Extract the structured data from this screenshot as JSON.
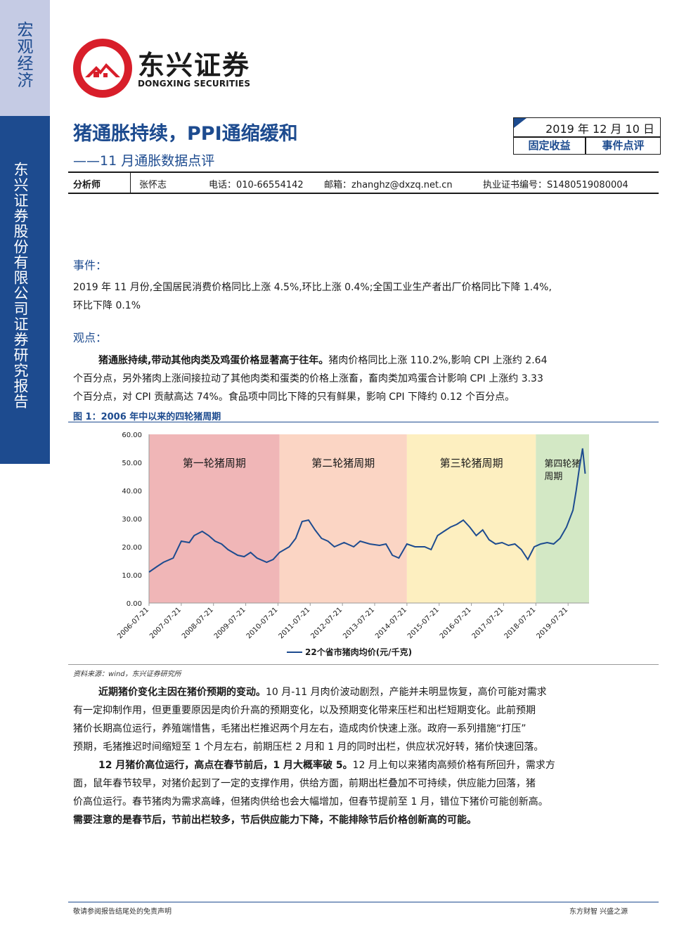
{
  "sidebar": {
    "category": "宏观经济",
    "company": "东兴证券股份有限公司证券研究报告"
  },
  "brand": {
    "name_cn": "东兴证券",
    "name_en": "DONGXING SECURITIES",
    "logo_color": "#d81e2a"
  },
  "report": {
    "title": "猪通胀持续，PPI通缩缓和",
    "subtitle": "——11 月通胀数据点评",
    "date": "2019 年 12 月 10 日",
    "tags": [
      "固定收益",
      "事件点评"
    ]
  },
  "analyst": {
    "label": "分析师",
    "name": "张怀志",
    "phone": "电话：010-66554142",
    "email": "邮箱：zhanghz@dxzq.net.cn",
    "cert": "执业证书编号：S1480519080004"
  },
  "event": {
    "heading": "事件：",
    "lines": [
      "2019 年 11 月份,全国居民消费价格同比上涨 4.5%,环比上涨 0.4%;全国工业生产者出厂价格同比下降 1.4%,",
      "环比下降 0.1%"
    ]
  },
  "view": {
    "heading": "观点：",
    "p1_bold": "猪通胀持续,带动其他肉类及鸡蛋价格显著高于往年。",
    "p1_line1_rest": "猪肉价格同比上涨 110.2%,影响 CPI 上涨约 2.64",
    "p1_line2": "个百分点，另外猪肉上涨间接拉动了其他肉类和蛋类的价格上涨畜，畜肉类加鸡蛋合计影响 CPI 上涨约 3.33",
    "p1_line3": "个百分点，对 CPI 贡献高达 74%。食品项中同比下降的只有鲜果，影响 CPI 下降约 0.12 个百分点。"
  },
  "figure": {
    "title": "图 1：2006 年中以来的四轮猪周期",
    "source": "资料来源：wind，东兴证券研究所"
  },
  "chart_data": {
    "type": "line",
    "title": "",
    "xlabel": "",
    "ylabel": "",
    "ylim": [
      0,
      60
    ],
    "yticks": [
      "0.00",
      "10.00",
      "20.00",
      "30.00",
      "40.00",
      "50.00",
      "60.00"
    ],
    "xticks": [
      "2006-07-21",
      "2007-07-21",
      "2008-07-21",
      "2009-07-21",
      "2010-07-21",
      "2011-07-21",
      "2012-07-21",
      "2013-07-21",
      "2014-07-21",
      "2015-07-21",
      "2016-07-21",
      "2017-07-21",
      "2018-07-21",
      "2019-07-21"
    ],
    "grid": false,
    "legend_position": "bottom",
    "series": [
      {
        "name": "22个省市猪肉均价(元/千克)",
        "color": "#1d4b8f",
        "x": [
          2006.55,
          2006.8,
          2007.0,
          2007.3,
          2007.55,
          2007.8,
          2007.95,
          2008.2,
          2008.4,
          2008.6,
          2008.8,
          2009.0,
          2009.3,
          2009.5,
          2009.7,
          2009.9,
          2010.2,
          2010.4,
          2010.6,
          2010.9,
          2011.1,
          2011.3,
          2011.5,
          2011.7,
          2011.9,
          2012.1,
          2012.3,
          2012.6,
          2012.9,
          2013.1,
          2013.4,
          2013.7,
          2013.9,
          2014.1,
          2014.3,
          2014.55,
          2014.8,
          2015.1,
          2015.3,
          2015.5,
          2015.7,
          2015.9,
          2016.1,
          2016.3,
          2016.5,
          2016.7,
          2016.9,
          2017.1,
          2017.3,
          2017.5,
          2017.7,
          2017.9,
          2018.1,
          2018.3,
          2018.5,
          2018.7,
          2018.9,
          2019.1,
          2019.3,
          2019.5,
          2019.7,
          2019.8,
          2019.9,
          2020.0,
          2020.08
        ],
        "values": [
          11.0,
          13.0,
          14.5,
          16.0,
          22.0,
          21.5,
          24.0,
          25.5,
          24.0,
          22.0,
          21.0,
          19.0,
          17.0,
          16.5,
          18.0,
          16.0,
          14.5,
          15.5,
          18.0,
          20.0,
          23.0,
          29.0,
          29.5,
          26.0,
          23.0,
          22.0,
          20.0,
          21.5,
          20.0,
          22.0,
          21.0,
          20.5,
          21.0,
          17.0,
          16.0,
          21.0,
          20.0,
          20.0,
          19.0,
          24.0,
          25.5,
          27.0,
          28.0,
          29.5,
          27.0,
          24.0,
          26.0,
          22.5,
          21.0,
          21.5,
          20.5,
          21.0,
          19.0,
          15.5,
          20.0,
          21.0,
          21.5,
          21.0,
          23.0,
          27.0,
          33.0,
          40.0,
          48.0,
          55.0,
          46.0
        ]
      }
    ],
    "annotations": [
      {
        "label": "第一轮猪周期",
        "from": 2006.55,
        "to": 2010.6,
        "color": "#f0b6b7"
      },
      {
        "label": "第二轮猪周期",
        "from": 2010.6,
        "to": 2014.55,
        "color": "#fbd5c4"
      },
      {
        "label": "第三轮猪周期",
        "from": 2014.55,
        "to": 2018.55,
        "color": "#fdefc0"
      },
      {
        "label": "第四轮猪\n周期",
        "from": 2018.55,
        "to": 2020.2,
        "color": "#d3e8c5"
      }
    ]
  },
  "analysis": {
    "p2_bold": "近期猪价变化主因在猪价预期的变动。",
    "p2_line1_rest": "10 月-11 月肉价波动剧烈，产能并未明显恢复，高价可能对需求",
    "p2_line2": "有一定抑制作用，但更重要原因是肉价升高的预期变化，以及预期变化带来压栏和出栏短期变化。此前预期",
    "p2_line3": "猪价长期高位运行，养殖端惜售，毛猪出栏推迟两个月左右，造成肉价快速上涨。政府一系列措施“打压”",
    "p2_line4": "预期，毛猪推迟时间缩短至 1 个月左右，前期压栏 2 月和 1 月的同时出栏，供应状况好转，猪价快速回落。",
    "p3_bold": "12 月猪价高位运行，高点在春节前后，1 月大概率破 5。",
    "p3_line1_rest": "12 月上旬以来猪肉高频价格有所回升，需求方",
    "p3_line2": "面，鼠年春节较早，对猪价起到了一定的支撑作用，供给方面，前期出栏叠加不可持续，供应能力回落，猪",
    "p3_line3": "价高位运行。春节猪肉为需求高峰，但猪肉供给也会大幅增加，但春节提前至 1 月，错位下猪价可能创新高。",
    "p3_bold_end": "需要注意的是春节后，节前出栏较多，节后供应能力下降，不能排除节后价格创新高的可能。"
  },
  "footer": {
    "left": "敬请参阅报告结尾处的免责声明",
    "right": "东方财智  兴盛之源"
  }
}
